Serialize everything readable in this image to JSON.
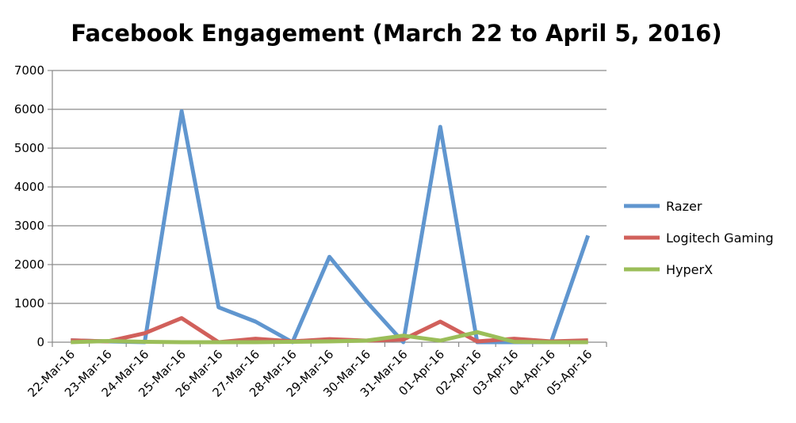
{
  "chart_data": {
    "type": "line",
    "title": "Facebook Engagement (March 22 to April 5, 2016)",
    "xlabel": "",
    "ylabel": "",
    "ylim": [
      0,
      7000
    ],
    "yticks": [
      0,
      1000,
      2000,
      3000,
      4000,
      5000,
      6000,
      7000
    ],
    "grid": true,
    "legend_position": "right",
    "categories": [
      "22-Mar-16",
      "23-Mar-16",
      "24-Mar-16",
      "25-Mar-16",
      "26-Mar-16",
      "27-Mar-16",
      "28-Mar-16",
      "29-Mar-16",
      "30-Mar-16",
      "31-Mar-16",
      "01-Apr-16",
      "02-Apr-16",
      "03-Apr-16",
      "04-Apr-16",
      "05-Apr-16"
    ],
    "series": [
      {
        "name": "Razer",
        "color": "#6096CF",
        "values": [
          50,
          20,
          0,
          5950,
          900,
          530,
          0,
          2200,
          1050,
          0,
          5550,
          0,
          0,
          0,
          2750
        ]
      },
      {
        "name": "Logitech Gaming",
        "color": "#D1605B",
        "values": [
          50,
          20,
          230,
          620,
          0,
          90,
          20,
          80,
          40,
          70,
          530,
          20,
          90,
          20,
          50
        ]
      },
      {
        "name": "HyperX",
        "color": "#9BBE59",
        "values": [
          0,
          30,
          10,
          0,
          0,
          0,
          10,
          20,
          40,
          170,
          40,
          260,
          10,
          0,
          0
        ]
      }
    ]
  }
}
